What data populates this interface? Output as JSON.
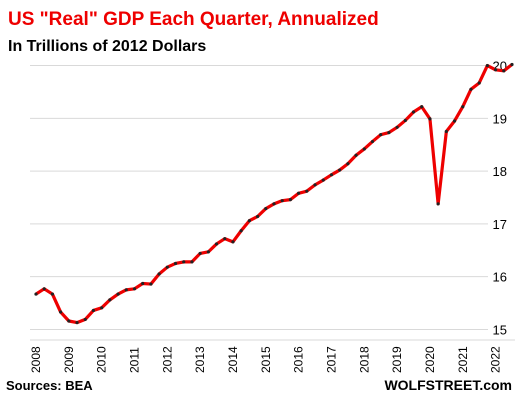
{
  "chart_data": {
    "type": "line",
    "title": "US \"Real\" GDP Each Quarter, Annualized",
    "subtitle": "In Trillions of 2012 Dollars",
    "source": "Sources: BEA",
    "credit": "WOLFSTREET.com",
    "categories": [
      "2008",
      null,
      null,
      null,
      "2009",
      null,
      null,
      null,
      "2010",
      null,
      null,
      null,
      "2011",
      null,
      null,
      null,
      "2012",
      null,
      null,
      null,
      "2013",
      null,
      null,
      null,
      "2014",
      null,
      null,
      null,
      "2015",
      null,
      null,
      null,
      "2016",
      null,
      null,
      null,
      "2017",
      null,
      null,
      null,
      "2018",
      null,
      null,
      null,
      "2019",
      null,
      null,
      null,
      "2020",
      null,
      null,
      null,
      "2021",
      null,
      null,
      null,
      "2022",
      null,
      null
    ],
    "series": [
      {
        "name": "Real GDP",
        "color": "#ee0000",
        "marker_color": "#222222",
        "values": [
          15.67,
          15.77,
          15.67,
          15.33,
          15.16,
          15.13,
          15.19,
          15.36,
          15.41,
          15.56,
          15.67,
          15.75,
          15.77,
          15.87,
          15.86,
          16.05,
          16.18,
          16.25,
          16.28,
          16.28,
          16.44,
          16.47,
          16.62,
          16.72,
          16.66,
          16.87,
          17.06,
          17.14,
          17.29,
          17.38,
          17.44,
          17.46,
          17.58,
          17.62,
          17.74,
          17.83,
          17.93,
          18.02,
          18.14,
          18.3,
          18.42,
          18.56,
          18.69,
          18.73,
          18.83,
          18.96,
          19.12,
          19.22,
          18.99,
          17.38,
          18.75,
          18.95,
          19.22,
          19.55,
          19.67,
          20.0,
          19.92,
          19.9,
          20.02
        ]
      }
    ],
    "ylim": [
      14.8,
      20.2
    ],
    "yticks": [
      15,
      16,
      17,
      18,
      19,
      20
    ],
    "grid": true
  }
}
